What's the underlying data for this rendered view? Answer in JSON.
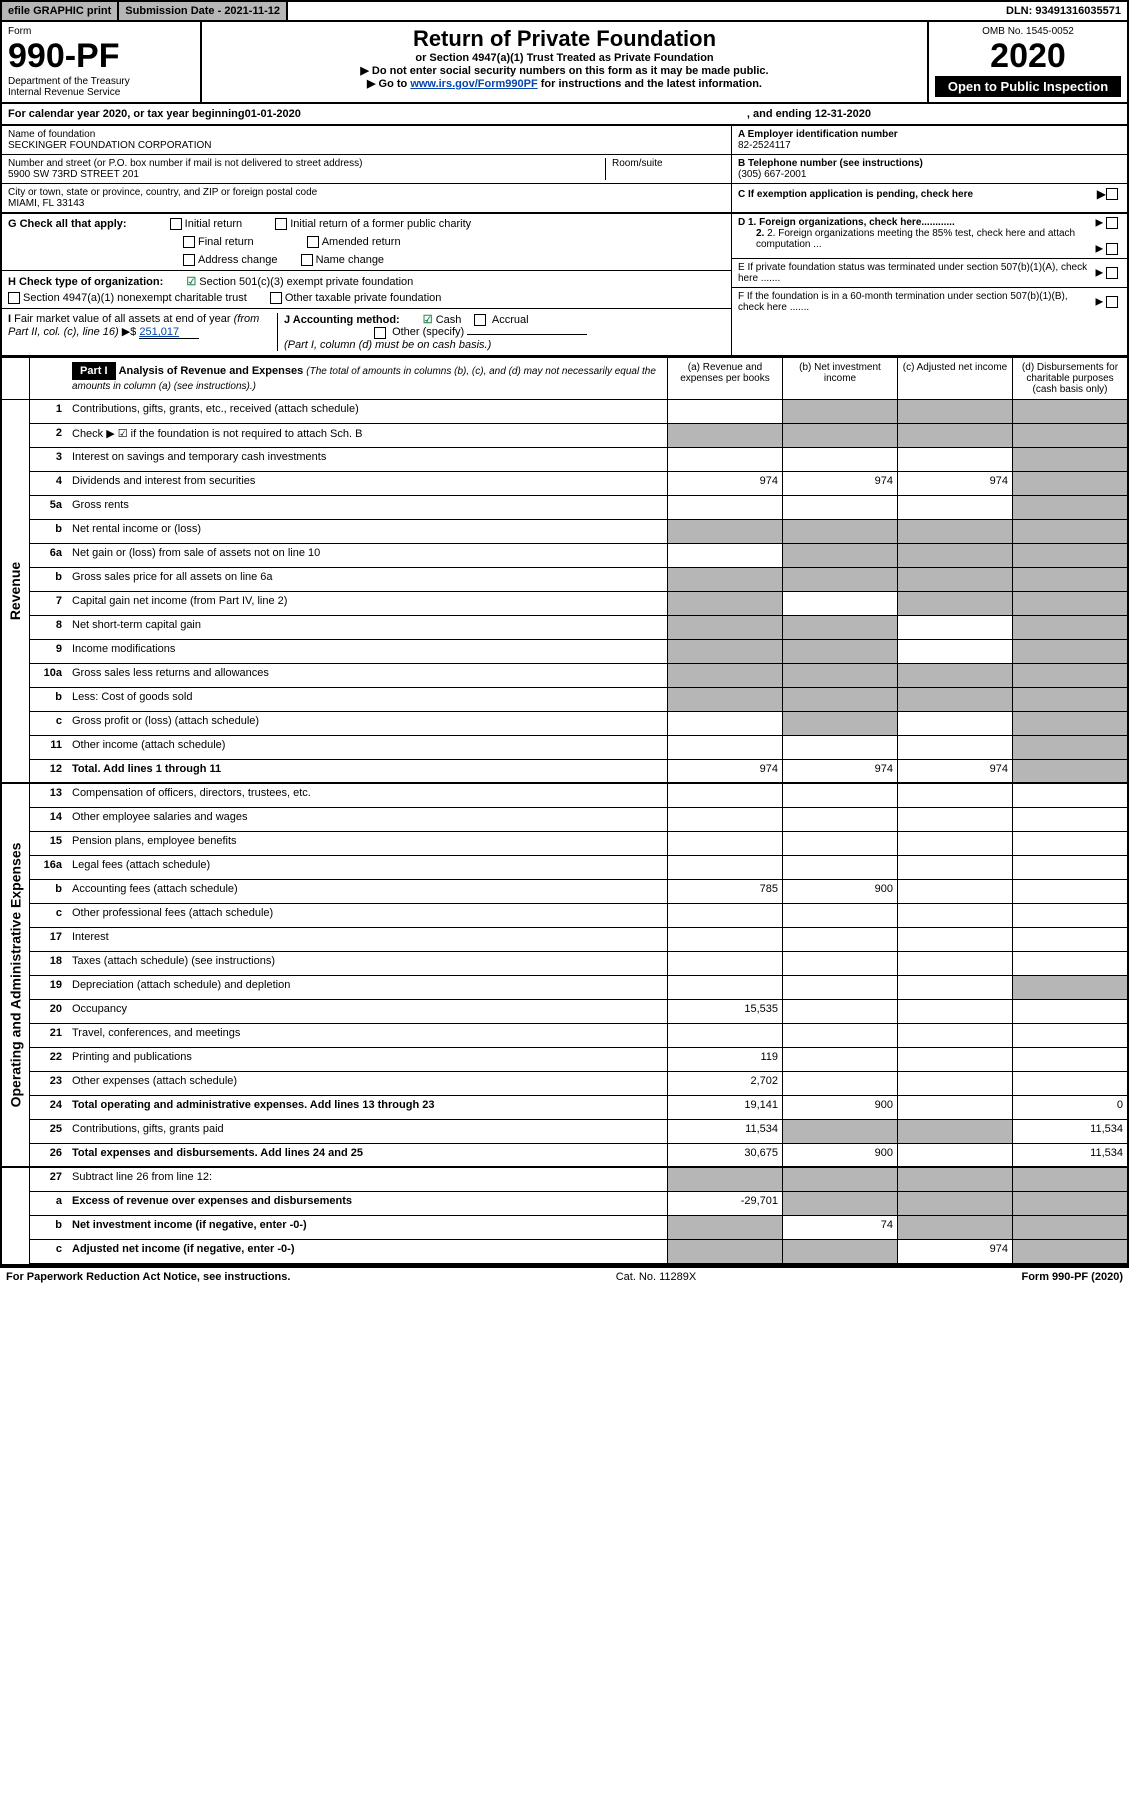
{
  "topbar": {
    "efile": "efile GRAPHIC print",
    "subdate_label": "Submission Date - 2021-11-12",
    "dln": "DLN: 93491316035571"
  },
  "header": {
    "form_word": "Form",
    "form_no": "990-PF",
    "dept": "Department of the Treasury",
    "irs": "Internal Revenue Service",
    "title": "Return of Private Foundation",
    "subtitle": "or Section 4947(a)(1) Trust Treated as Private Foundation",
    "note1": "▶ Do not enter social security numbers on this form as it may be made public.",
    "note2_prefix": "▶ Go to ",
    "note2_link": "www.irs.gov/Form990PF",
    "note2_suffix": " for instructions and the latest information.",
    "omb": "OMB No. 1545-0052",
    "year": "2020",
    "open": "Open to Public Inspection"
  },
  "calendar": {
    "text_a": "For calendar year 2020, or tax year beginning ",
    "begin": "01-01-2020",
    "text_b": ", and ending ",
    "end": "12-31-2020"
  },
  "entity": {
    "name_label": "Name of foundation",
    "name": "SECKINGER FOUNDATION CORPORATION",
    "ein_label": "A Employer identification number",
    "ein": "82-2524117",
    "addr_label": "Number and street (or P.O. box number if mail is not delivered to street address)",
    "addr": "5900 SW 73RD STREET 201",
    "room_label": "Room/suite",
    "phone_label": "B Telephone number (see instructions)",
    "phone": "(305) 667-2001",
    "city_label": "City or town, state or province, country, and ZIP or foreign postal code",
    "city": "MIAMI, FL  33143",
    "c_label": "C If exemption application is pending, check here"
  },
  "checks": {
    "g_label": "G Check all that apply:",
    "g_opts": [
      "Initial return",
      "Initial return of a former public charity",
      "Final return",
      "Amended return",
      "Address change",
      "Name change"
    ],
    "h_label": "H Check type of organization:",
    "h_opt1": "Section 501(c)(3) exempt private foundation",
    "h_opt2": "Section 4947(a)(1) nonexempt charitable trust",
    "h_opt3": "Other taxable private foundation",
    "i_label": "I Fair market value of all assets at end of year (from Part II, col. (c), line 16) ▶$ ",
    "i_value": "251,017",
    "j_label": "J Accounting method:",
    "j_cash": "Cash",
    "j_accrual": "Accrual",
    "j_other": "Other (specify)",
    "j_note": "(Part I, column (d) must be on cash basis.)",
    "d1": "D 1. Foreign organizations, check here............",
    "d2": "2. Foreign organizations meeting the 85% test, check here and attach computation ...",
    "e": "E If private foundation status was terminated under section 507(b)(1)(A), check here .......",
    "f": "F If the foundation is in a 60-month termination under section 507(b)(1)(B), check here ......."
  },
  "part1": {
    "label": "Part I",
    "title": "Analysis of Revenue and Expenses",
    "note": " (The total of amounts in columns (b), (c), and (d) may not necessarily equal the amounts in column (a) (see instructions).)",
    "col_a": "(a)   Revenue and expenses per books",
    "col_b": "(b)   Net investment income",
    "col_c": "(c)   Adjusted net income",
    "col_d": "(d)   Disbursements for charitable purposes (cash basis only)"
  },
  "sides": {
    "rev": "Revenue",
    "exp": "Operating and Administrative Expenses"
  },
  "lines": [
    {
      "n": "1",
      "d": "Contributions, gifts, grants, etc., received (attach schedule)",
      "a": "",
      "b": "",
      "c": "",
      "dd": "",
      "grey": [
        "b",
        "c",
        "dd"
      ]
    },
    {
      "n": "2",
      "d": "Check ▶ ☑ if the foundation is not required to attach Sch. B",
      "a": "",
      "b": "",
      "c": "",
      "dd": "",
      "grey": [
        "a",
        "b",
        "c",
        "dd"
      ],
      "bold_not": true
    },
    {
      "n": "3",
      "d": "Interest on savings and temporary cash investments",
      "a": "",
      "b": "",
      "c": "",
      "dd": "",
      "grey": [
        "dd"
      ]
    },
    {
      "n": "4",
      "d": "Dividends and interest from securities",
      "a": "974",
      "b": "974",
      "c": "974",
      "dd": "",
      "grey": [
        "dd"
      ]
    },
    {
      "n": "5a",
      "d": "Gross rents",
      "a": "",
      "b": "",
      "c": "",
      "dd": "",
      "grey": [
        "dd"
      ]
    },
    {
      "n": "b",
      "d": "Net rental income or (loss)",
      "a": "",
      "b": "",
      "c": "",
      "dd": "",
      "grey": [
        "a",
        "b",
        "c",
        "dd"
      ],
      "inset": true
    },
    {
      "n": "6a",
      "d": "Net gain or (loss) from sale of assets not on line 10",
      "a": "",
      "b": "",
      "c": "",
      "dd": "",
      "grey": [
        "b",
        "c",
        "dd"
      ]
    },
    {
      "n": "b",
      "d": "Gross sales price for all assets on line 6a",
      "a": "",
      "b": "",
      "c": "",
      "dd": "",
      "grey": [
        "a",
        "b",
        "c",
        "dd"
      ],
      "inset": true
    },
    {
      "n": "7",
      "d": "Capital gain net income (from Part IV, line 2)",
      "a": "",
      "b": "",
      "c": "",
      "dd": "",
      "grey": [
        "a",
        "c",
        "dd"
      ]
    },
    {
      "n": "8",
      "d": "Net short-term capital gain",
      "a": "",
      "b": "",
      "c": "",
      "dd": "",
      "grey": [
        "a",
        "b",
        "dd"
      ]
    },
    {
      "n": "9",
      "d": "Income modifications",
      "a": "",
      "b": "",
      "c": "",
      "dd": "",
      "grey": [
        "a",
        "b",
        "dd"
      ]
    },
    {
      "n": "10a",
      "d": "Gross sales less returns and allowances",
      "a": "",
      "b": "",
      "c": "",
      "dd": "",
      "grey": [
        "a",
        "b",
        "c",
        "dd"
      ],
      "inset": true
    },
    {
      "n": "b",
      "d": "Less: Cost of goods sold",
      "a": "",
      "b": "",
      "c": "",
      "dd": "",
      "grey": [
        "a",
        "b",
        "c",
        "dd"
      ],
      "inset": true
    },
    {
      "n": "c",
      "d": "Gross profit or (loss) (attach schedule)",
      "a": "",
      "b": "",
      "c": "",
      "dd": "",
      "grey": [
        "b",
        "dd"
      ]
    },
    {
      "n": "11",
      "d": "Other income (attach schedule)",
      "a": "",
      "b": "",
      "c": "",
      "dd": "",
      "grey": [
        "dd"
      ]
    },
    {
      "n": "12",
      "d": "Total. Add lines 1 through 11",
      "a": "974",
      "b": "974",
      "c": "974",
      "dd": "",
      "grey": [
        "dd"
      ],
      "bold": true
    }
  ],
  "exp_lines": [
    {
      "n": "13",
      "d": "Compensation of officers, directors, trustees, etc.",
      "a": "",
      "b": "",
      "c": "",
      "dd": ""
    },
    {
      "n": "14",
      "d": "Other employee salaries and wages",
      "a": "",
      "b": "",
      "c": "",
      "dd": ""
    },
    {
      "n": "15",
      "d": "Pension plans, employee benefits",
      "a": "",
      "b": "",
      "c": "",
      "dd": ""
    },
    {
      "n": "16a",
      "d": "Legal fees (attach schedule)",
      "a": "",
      "b": "",
      "c": "",
      "dd": ""
    },
    {
      "n": "b",
      "d": "Accounting fees (attach schedule)",
      "a": "785",
      "b": "900",
      "c": "",
      "dd": ""
    },
    {
      "n": "c",
      "d": "Other professional fees (attach schedule)",
      "a": "",
      "b": "",
      "c": "",
      "dd": ""
    },
    {
      "n": "17",
      "d": "Interest",
      "a": "",
      "b": "",
      "c": "",
      "dd": ""
    },
    {
      "n": "18",
      "d": "Taxes (attach schedule) (see instructions)",
      "a": "",
      "b": "",
      "c": "",
      "dd": ""
    },
    {
      "n": "19",
      "d": "Depreciation (attach schedule) and depletion",
      "a": "",
      "b": "",
      "c": "",
      "dd": "",
      "grey": [
        "dd"
      ]
    },
    {
      "n": "20",
      "d": "Occupancy",
      "a": "15,535",
      "b": "",
      "c": "",
      "dd": ""
    },
    {
      "n": "21",
      "d": "Travel, conferences, and meetings",
      "a": "",
      "b": "",
      "c": "",
      "dd": ""
    },
    {
      "n": "22",
      "d": "Printing and publications",
      "a": "119",
      "b": "",
      "c": "",
      "dd": ""
    },
    {
      "n": "23",
      "d": "Other expenses (attach schedule)",
      "a": "2,702",
      "b": "",
      "c": "",
      "dd": "",
      "icon": true
    },
    {
      "n": "24",
      "d": "Total operating and administrative expenses. Add lines 13 through 23",
      "a": "19,141",
      "b": "900",
      "c": "",
      "dd": "0",
      "bold": true
    },
    {
      "n": "25",
      "d": "Contributions, gifts, grants paid",
      "a": "11,534",
      "b": "",
      "c": "",
      "dd": "11,534",
      "grey": [
        "b",
        "c"
      ]
    },
    {
      "n": "26",
      "d": "Total expenses and disbursements. Add lines 24 and 25",
      "a": "30,675",
      "b": "900",
      "c": "",
      "dd": "11,534",
      "bold": true
    }
  ],
  "bottom_lines": [
    {
      "n": "27",
      "d": "Subtract line 26 from line 12:",
      "a": "",
      "b": "",
      "c": "",
      "dd": "",
      "grey": [
        "a",
        "b",
        "c",
        "dd"
      ]
    },
    {
      "n": "a",
      "d": "Excess of revenue over expenses and disbursements",
      "a": "-29,701",
      "b": "",
      "c": "",
      "dd": "",
      "grey": [
        "b",
        "c",
        "dd"
      ],
      "bold": true
    },
    {
      "n": "b",
      "d": "Net investment income (if negative, enter -0-)",
      "a": "",
      "b": "74",
      "c": "",
      "dd": "",
      "grey": [
        "a",
        "c",
        "dd"
      ],
      "bold": true
    },
    {
      "n": "c",
      "d": "Adjusted net income (if negative, enter -0-)",
      "a": "",
      "b": "",
      "c": "974",
      "dd": "",
      "grey": [
        "a",
        "b",
        "dd"
      ],
      "bold": true
    }
  ],
  "footer": {
    "left": "For Paperwork Reduction Act Notice, see instructions.",
    "mid": "Cat. No. 11289X",
    "right": "Form 990-PF (2020)"
  }
}
